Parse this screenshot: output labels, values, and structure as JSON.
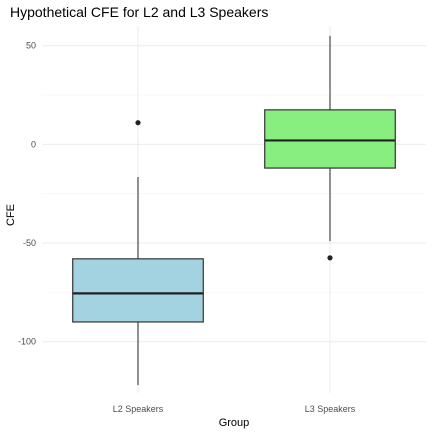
{
  "chart_data": {
    "type": "boxplot",
    "title": "Hypothetical CFE for L2 and L3 Speakers",
    "xlabel": "Group",
    "ylabel": "CFE",
    "ylim": [
      -126,
      60
    ],
    "yticks": [
      50,
      0,
      -50,
      -100
    ],
    "grid": true,
    "categories": [
      "L2 Speakers",
      "L3 Speakers"
    ],
    "series": [
      {
        "category": "L2 Speakers",
        "whisker_low": -122,
        "q1": -90,
        "median": -75.5,
        "q3": -58,
        "whisker_high": -16.5,
        "outliers": [
          11
        ],
        "fill": "#a3d3e1"
      },
      {
        "category": "L3 Speakers",
        "whisker_low": -49,
        "q1": -12,
        "median": 2,
        "q3": 17.5,
        "whisker_high": 55,
        "outliers": [
          -57.5
        ],
        "fill": "#88ee7f"
      }
    ]
  }
}
